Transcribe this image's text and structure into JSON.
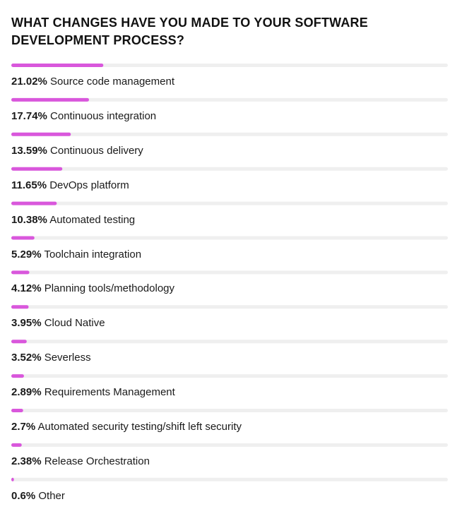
{
  "chart_data": {
    "type": "bar",
    "orientation": "horizontal",
    "title": "WHAT CHANGES HAVE YOU MADE TO YOUR SOFTWARE DEVELOPMENT PROCESS?",
    "unit": "%",
    "xlim": [
      0,
      100
    ],
    "grid": false,
    "legend": "none",
    "categories": [
      "Source code management",
      "Continuous integration",
      "Continuous delivery",
      "DevOps platform",
      "Automated testing",
      "Toolchain integration",
      "Planning tools/methodology",
      "Cloud Native",
      "Severless",
      "Requirements Management",
      "Automated security testing/shift left security",
      "Release Orchestration",
      "Other"
    ],
    "values": [
      21.02,
      17.74,
      13.59,
      11.65,
      10.38,
      5.29,
      4.12,
      3.95,
      3.52,
      2.89,
      2.7,
      2.38,
      0.6
    ],
    "value_labels": [
      "21.02%",
      "17.74%",
      "13.59%",
      "11.65%",
      "10.38%",
      "5.29%",
      "4.12%",
      "3.95%",
      "3.52%",
      "2.89%",
      "2.7%",
      "2.38%",
      "0.6%"
    ],
    "colors": {
      "bar": "#d957dc",
      "track": "#efefef"
    }
  }
}
